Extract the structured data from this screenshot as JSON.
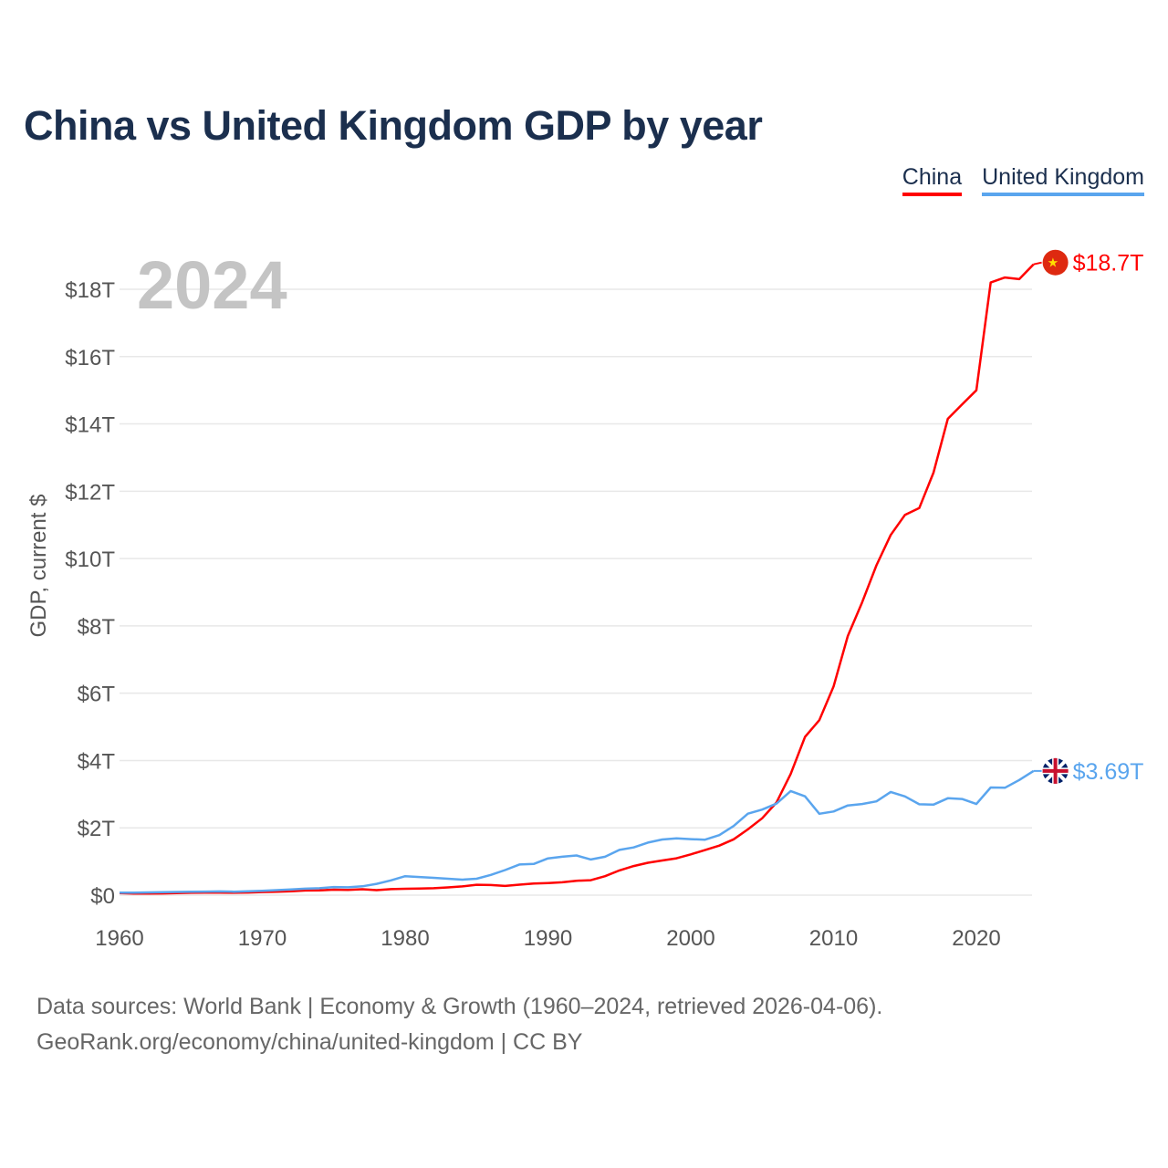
{
  "title": "China vs United Kingdom GDP by year",
  "footer": {
    "line1": "Data sources: World Bank | Economy & Growth (1960–2024, retrieved 2026-04-06).",
    "line2": "GeoRank.org/economy/china/united-kingdom | CC BY"
  },
  "chart_data": {
    "type": "line",
    "title": "China vs United Kingdom GDP by year",
    "year_label": "2024",
    "xlabel": "",
    "ylabel": "GDP, current $",
    "xlim": [
      1960,
      2024
    ],
    "ylim": [
      0,
      18.7
    ],
    "x_ticks": [
      1960,
      1970,
      1980,
      1990,
      2000,
      2010,
      2020
    ],
    "y_ticks": [
      0,
      2,
      4,
      6,
      8,
      10,
      12,
      14,
      16,
      18
    ],
    "y_tick_labels": [
      "$0",
      "$2T",
      "$4T",
      "$6T",
      "$8T",
      "$10T",
      "$12T",
      "$14T",
      "$16T",
      "$18T"
    ],
    "grid": true,
    "legend": "top-right",
    "series": [
      {
        "name": "China",
        "color": "#ff0000",
        "end_label": "$18.7T",
        "flag": "china-flag-icon",
        "values": [
          0.06,
          0.05,
          0.047,
          0.051,
          0.059,
          0.07,
          0.076,
          0.072,
          0.07,
          0.079,
          0.093,
          0.1,
          0.114,
          0.139,
          0.144,
          0.163,
          0.154,
          0.175,
          0.15,
          0.178,
          0.191,
          0.196,
          0.205,
          0.231,
          0.26,
          0.309,
          0.301,
          0.273,
          0.312,
          0.348,
          0.361,
          0.383,
          0.427,
          0.445,
          0.564,
          0.734,
          0.864,
          0.962,
          1.029,
          1.094,
          1.211,
          1.339,
          1.471,
          1.66,
          1.955,
          2.286,
          2.752,
          3.6,
          4.7,
          5.2,
          6.2,
          7.7,
          8.7,
          9.8,
          10.7,
          11.3,
          11.5,
          12.55,
          14.15,
          14.58,
          15.0,
          18.2,
          18.35,
          18.3,
          18.74
        ]
      },
      {
        "name": "United Kingdom",
        "color": "#5aa5ee",
        "end_label": "$3.69T",
        "flag": "uk-flag-icon",
        "values": [
          0.073,
          0.077,
          0.081,
          0.086,
          0.094,
          0.1,
          0.106,
          0.111,
          0.104,
          0.113,
          0.131,
          0.148,
          0.17,
          0.193,
          0.206,
          0.241,
          0.233,
          0.263,
          0.336,
          0.438,
          0.564,
          0.54,
          0.515,
          0.489,
          0.461,
          0.489,
          0.601,
          0.745,
          0.91,
          0.926,
          1.093,
          1.142,
          1.18,
          1.061,
          1.14,
          1.345,
          1.419,
          1.561,
          1.654,
          1.687,
          1.665,
          1.649,
          1.785,
          2.055,
          2.422,
          2.544,
          2.718,
          3.094,
          2.937,
          2.419,
          2.485,
          2.664,
          2.707,
          2.786,
          3.065,
          2.934,
          2.7,
          2.688,
          2.879,
          2.858,
          2.709,
          3.2,
          3.19,
          3.42,
          3.69
        ]
      }
    ],
    "start_year": 1960
  }
}
